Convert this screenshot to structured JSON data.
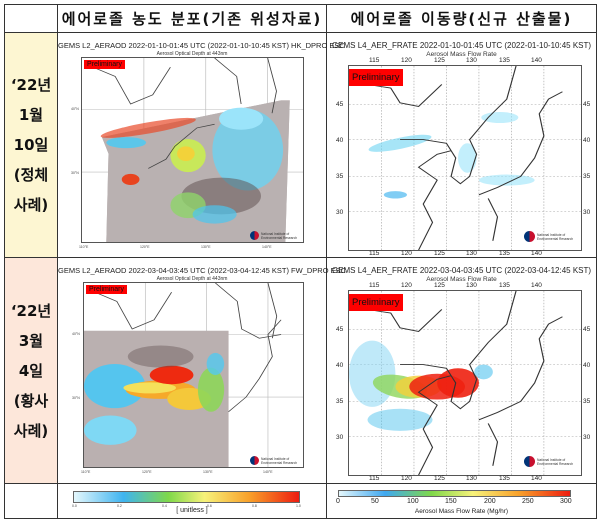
{
  "header": {
    "col_left": "에어로졸 농도 분포(기존 위성자료)",
    "col_right": "에어로졸 이동량(신규 산출물)"
  },
  "rows": [
    {
      "label": [
        "‘22년",
        "1월",
        "10일",
        "(정체",
        "사례)"
      ],
      "left_map": {
        "title": "GEMS L2_AERAOD 2022-01-10-01:45 UTC (2022-01-10-10:45 KST)  HK_DPRO ESC",
        "subtitle": "Aerosol Optical Depth at 443nm",
        "badge": "Preliminary",
        "lat_ticks": [
          "40°N",
          "30°N"
        ],
        "lon_ticks": [
          "110°E",
          "120°E",
          "130°E",
          "140°E"
        ]
      },
      "right_map": {
        "title": "GEMS L4_AER_FRATE 2022-01-10-01:45 UTC (2022-01-10-10:45 KST)",
        "subtitle": "Aerosol Mass Flow Rate",
        "badge": "Preliminary",
        "lon_ticks": [
          "115",
          "120",
          "125",
          "130",
          "135",
          "140"
        ],
        "lat_ticks": [
          "45",
          "40",
          "35",
          "30"
        ]
      }
    },
    {
      "label": [
        "‘22년",
        "3월",
        "4일",
        "(황사",
        "사례)"
      ],
      "left_map": {
        "title": "GEMS L2_AERAOD 2022-03-04-03:45 UTC (2022-03-04-12:45 KST)  FW_DPRO ESC",
        "subtitle": "Aerosol Optical Depth at 443nm",
        "badge": "Preliminary",
        "lat_ticks": [
          "40°N",
          "30°N"
        ],
        "lon_ticks": [
          "110°E",
          "120°E",
          "130°E",
          "140°E"
        ]
      },
      "right_map": {
        "title": "GEMS L4_AER_FRATE 2022-03-04-03:45 UTC (2022-03-04-12:45 KST)",
        "subtitle": "Aerosol Mass Flow Rate",
        "badge": "Preliminary",
        "lon_ticks": [
          "115",
          "120",
          "125",
          "130",
          "135",
          "140"
        ],
        "lat_ticks": [
          "45",
          "40",
          "35",
          "30"
        ]
      }
    }
  ],
  "logo_text": "National Institute of Environmental Research",
  "colorbars": {
    "left": {
      "ticks": [
        "0.0",
        "0.2",
        "0.4",
        "0.6",
        "0.8",
        "1.0"
      ],
      "label": "[ unitless ]"
    },
    "right": {
      "ticks": [
        "0",
        "50",
        "100",
        "150",
        "200",
        "250",
        "300"
      ],
      "label": "Aerosol Mass Flow Rate (Mg/hr)"
    }
  }
}
